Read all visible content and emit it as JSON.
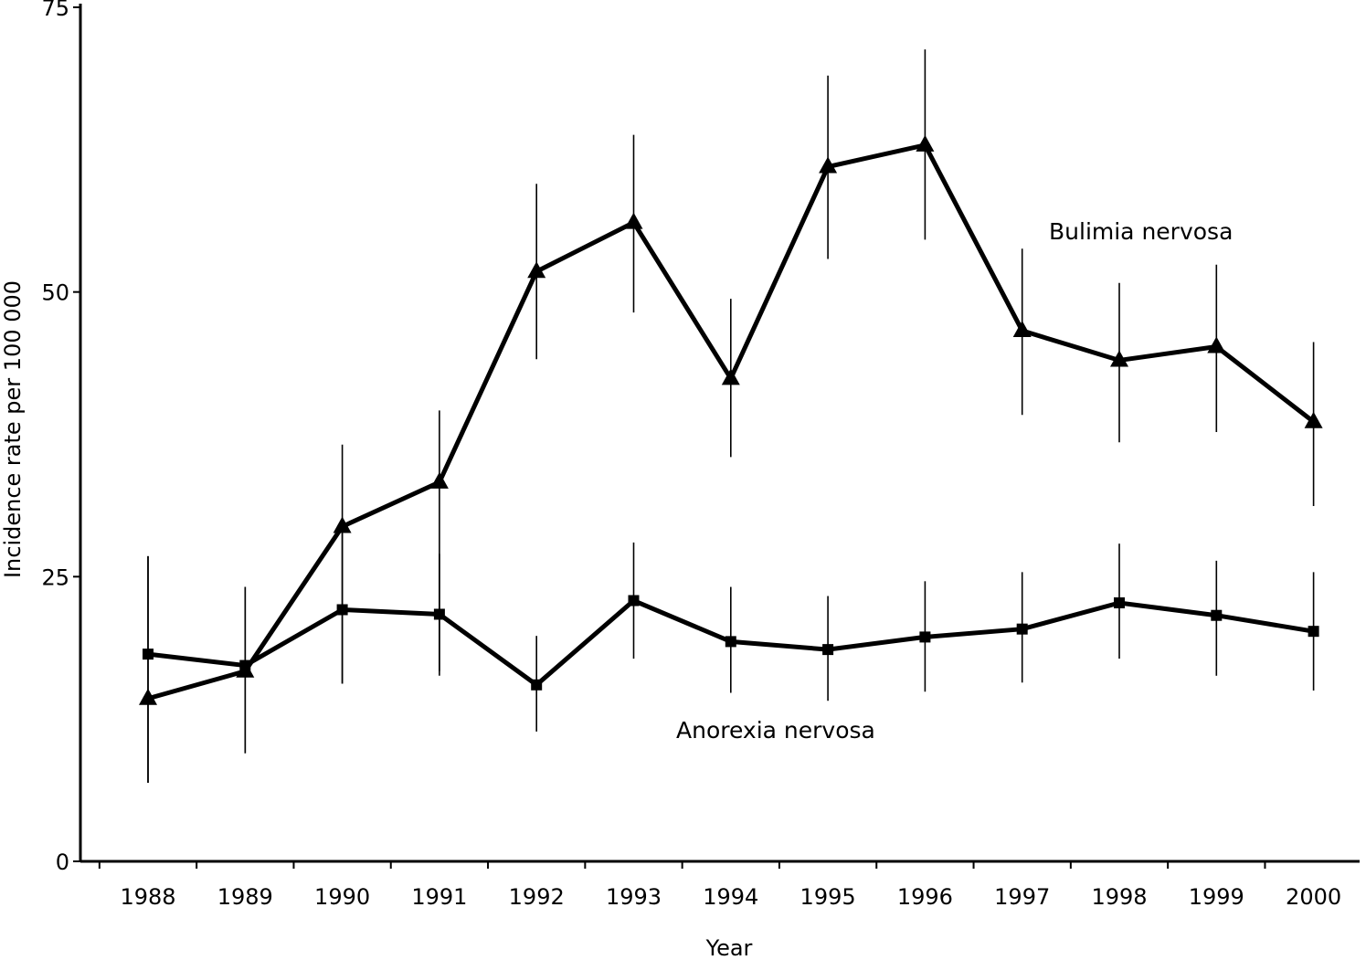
{
  "chart_data": {
    "type": "line",
    "title": "",
    "xlabel": "Year",
    "ylabel": "Incidence rate per 100 000",
    "ylim": [
      0,
      75
    ],
    "yticks": [
      0,
      25,
      50,
      75
    ],
    "grid": false,
    "legend": "none (series labelled directly on the plot)",
    "categories": [
      "1988",
      "1989",
      "1990",
      "1991",
      "1992",
      "1993",
      "1994",
      "1995",
      "1996",
      "1997",
      "1998",
      "1999",
      "2000"
    ],
    "series": [
      {
        "name": "Bulimia nervosa",
        "marker": "triangle",
        "values": [
          14.3,
          16.7,
          29.4,
          33.3,
          51.8,
          56.1,
          42.4,
          61.0,
          62.9,
          46.6,
          44.0,
          45.2,
          38.6
        ],
        "error_low": [
          6.9,
          9.5,
          15.6,
          16.7,
          44.1,
          48.2,
          35.5,
          52.9,
          54.6,
          39.2,
          36.8,
          37.7,
          31.2
        ],
        "error_high": [
          26.8,
          24.1,
          36.6,
          39.6,
          59.5,
          63.8,
          49.4,
          69.0,
          71.3,
          53.8,
          50.8,
          52.4,
          45.6
        ]
      },
      {
        "name": "Anorexia nervosa",
        "marker": "square",
        "values": [
          18.2,
          17.2,
          22.1,
          21.7,
          15.5,
          22.9,
          19.3,
          18.6,
          19.7,
          20.4,
          22.7,
          21.6,
          20.2
        ],
        "error_low": [
          6.9,
          9.5,
          15.6,
          16.3,
          11.4,
          17.8,
          14.8,
          14.1,
          14.9,
          15.7,
          17.8,
          16.3,
          15.0
        ],
        "error_high": [
          26.8,
          24.1,
          28.8,
          27.0,
          19.8,
          28.0,
          24.1,
          23.3,
          24.6,
          25.4,
          27.9,
          26.4,
          25.4
        ]
      }
    ]
  }
}
